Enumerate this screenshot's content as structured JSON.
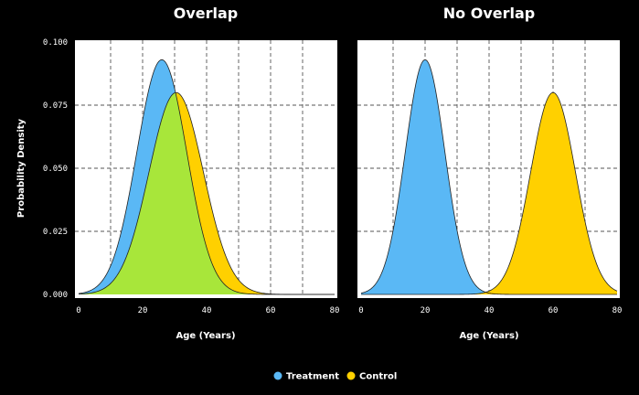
{
  "colors": {
    "background": "#000000",
    "plot_bg": "#ffffff",
    "treatment": "#5ab8f5",
    "control": "#ffd000",
    "overlap": "#a8e63a",
    "curve_line": "#222222"
  },
  "legend": {
    "position": "bottom-center",
    "items": [
      {
        "label": "Treatment",
        "color": "#5ab8f5"
      },
      {
        "label": "Control",
        "color": "#ffd000"
      }
    ]
  },
  "chart_data": [
    {
      "type": "area",
      "title": "Overlap",
      "xlabel": "Age (Years)",
      "ylabel": "Probability Density",
      "xlim": [
        0,
        80
      ],
      "ylim": [
        0,
        0.1
      ],
      "xticks": [
        0,
        20,
        40,
        60,
        80
      ],
      "yticks": [
        "0.000",
        "0.025",
        "0.050",
        "0.075",
        "0.100"
      ],
      "grid": true,
      "series": [
        {
          "name": "Treatment",
          "distribution": "normal",
          "mean": 26,
          "sd": 7.8,
          "peak_density": 0.093
        },
        {
          "name": "Control",
          "distribution": "normal",
          "mean": 30.5,
          "sd": 8.5,
          "peak_density": 0.08
        }
      ]
    },
    {
      "type": "area",
      "title": "No Overlap",
      "xlabel": "Age (Years)",
      "ylabel": "",
      "xlim": [
        0,
        80
      ],
      "ylim": [
        0,
        0.1
      ],
      "xticks": [
        0,
        20,
        40,
        60,
        80
      ],
      "yticks": [],
      "grid": true,
      "series": [
        {
          "name": "Treatment",
          "distribution": "normal",
          "mean": 20,
          "sd": 6.2,
          "peak_density": 0.093
        },
        {
          "name": "Control",
          "distribution": "normal",
          "mean": 60,
          "sd": 7.0,
          "peak_density": 0.08
        }
      ]
    }
  ]
}
